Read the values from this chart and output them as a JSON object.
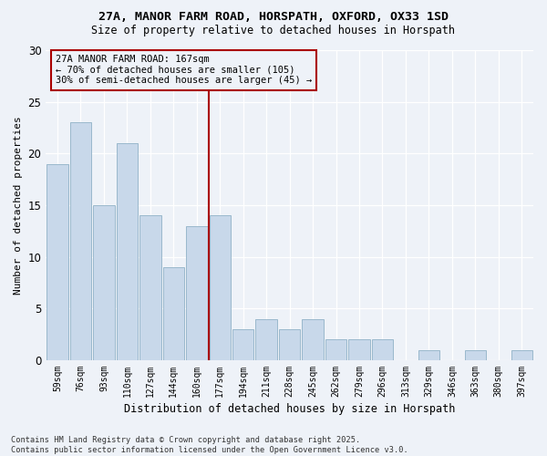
{
  "title": "27A, MANOR FARM ROAD, HORSPATH, OXFORD, OX33 1SD",
  "subtitle": "Size of property relative to detached houses in Horspath",
  "xlabel": "Distribution of detached houses by size in Horspath",
  "ylabel": "Number of detached properties",
  "categories": [
    "59sqm",
    "76sqm",
    "93sqm",
    "110sqm",
    "127sqm",
    "144sqm",
    "160sqm",
    "177sqm",
    "194sqm",
    "211sqm",
    "228sqm",
    "245sqm",
    "262sqm",
    "279sqm",
    "296sqm",
    "313sqm",
    "329sqm",
    "346sqm",
    "363sqm",
    "380sqm",
    "397sqm"
  ],
  "values": [
    19,
    23,
    15,
    21,
    14,
    9,
    13,
    14,
    3,
    4,
    3,
    4,
    2,
    2,
    2,
    0,
    1,
    0,
    1,
    0,
    1
  ],
  "bar_color": "#c8d8ea",
  "bar_edgecolor": "#9ab8cc",
  "vline_x": 6.5,
  "vline_color": "#aa0000",
  "annotation_text": "27A MANOR FARM ROAD: 167sqm\n← 70% of detached houses are smaller (105)\n30% of semi-detached houses are larger (45) →",
  "annotation_box_edgecolor": "#aa0000",
  "ylim": [
    0,
    30
  ],
  "yticks": [
    0,
    5,
    10,
    15,
    20,
    25,
    30
  ],
  "background_color": "#eef2f8",
  "grid_color": "#ffffff",
  "footnote": "Contains HM Land Registry data © Crown copyright and database right 2025.\nContains public sector information licensed under the Open Government Licence v3.0."
}
